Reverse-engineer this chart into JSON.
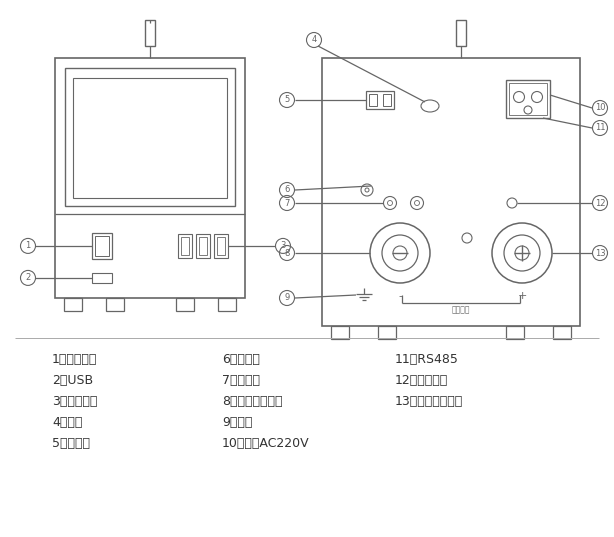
{
  "bg_color": "#ffffff",
  "line_color": "#666666",
  "text_color": "#333333",
  "legend_col1": [
    "1：电源开关",
    "2：USB",
    "3：放电开关",
    "4：天线",
    "5：采集盒"
  ],
  "legend_col2": [
    "6：总电流",
    "7：总电压",
    "8：放电端子负极",
    "9：地线",
    "10：电源AC220V"
  ],
  "legend_col3": [
    "11：RS485",
    "12：反接指示",
    "13：放电端子正极",
    "",
    ""
  ]
}
